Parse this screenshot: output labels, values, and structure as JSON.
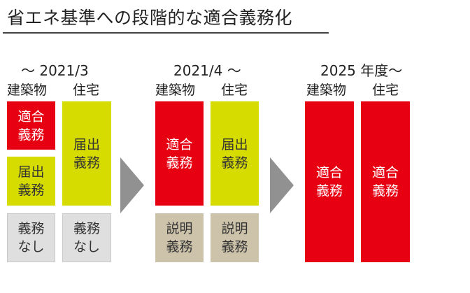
{
  "title": "省エネ基準への段階的な適合義務化",
  "phases": [
    {
      "period": "～ 2021/3",
      "col_labels": [
        "建築物",
        "住宅"
      ],
      "boxes": {
        "building_top": [
          "適合",
          "義務"
        ],
        "building_mid": [
          "届出",
          "義務"
        ],
        "building_bottom": [
          "義務",
          "なし"
        ],
        "house_top": [
          "届出",
          "義務"
        ],
        "house_bottom": [
          "義務",
          "なし"
        ]
      }
    },
    {
      "period": "2021/4 ～",
      "col_labels": [
        "建築物",
        "住宅"
      ],
      "boxes": {
        "building_top": [
          "適合",
          "義務"
        ],
        "building_bottom": [
          "説明",
          "義務"
        ],
        "house_top": [
          "届出",
          "義務"
        ],
        "house_bottom": [
          "説明",
          "義務"
        ]
      }
    },
    {
      "period": "2025 年度～",
      "col_labels": [
        "建築物",
        "住宅"
      ],
      "boxes": {
        "building": [
          "適合",
          "義務"
        ],
        "house": [
          "適合",
          "義務"
        ]
      }
    }
  ],
  "colors": {
    "mandatory_compliance": "#e60012",
    "notification": "#d6dc00",
    "none": "#dfdfdf",
    "explanation": "#cdc2aa",
    "arrow": "#919191"
  }
}
